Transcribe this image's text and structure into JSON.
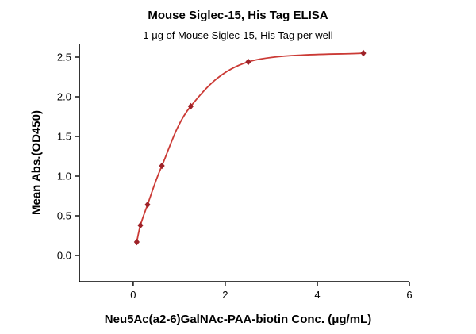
{
  "chart_data": {
    "type": "scatter",
    "title": "Mouse Siglec-15, His Tag ELISA",
    "subtitle": "1 μg of Mouse Siglec-15, His Tag per well",
    "xlabel": "Neu5Ac(a2-6)GalNAc-PAA-biotin Conc. (μg/mL)",
    "ylabel": "Mean Abs.(OD450)",
    "x": [
      0.0781,
      0.1563,
      0.3125,
      0.625,
      1.25,
      2.5,
      5
    ],
    "y": [
      0.17,
      0.38,
      0.64,
      1.13,
      1.88,
      2.44,
      2.55
    ],
    "x_ticks": [
      0,
      2,
      4,
      6
    ],
    "x_tick_labels": [
      "0",
      "2",
      "4",
      "6"
    ],
    "y_ticks": [
      0,
      0.5,
      1,
      1.5,
      2,
      2.5
    ],
    "y_tick_labels": [
      "0.0",
      "0.5",
      "1.0",
      "1.5",
      "2.0",
      "2.5"
    ],
    "xlim": [
      -1.17,
      6
    ],
    "ylim": [
      -0.33,
      2.67
    ],
    "grid": false,
    "legend": "none",
    "marker_color": "#9e2228",
    "line_color": "#cb3a35",
    "axis_color": "#000000"
  }
}
